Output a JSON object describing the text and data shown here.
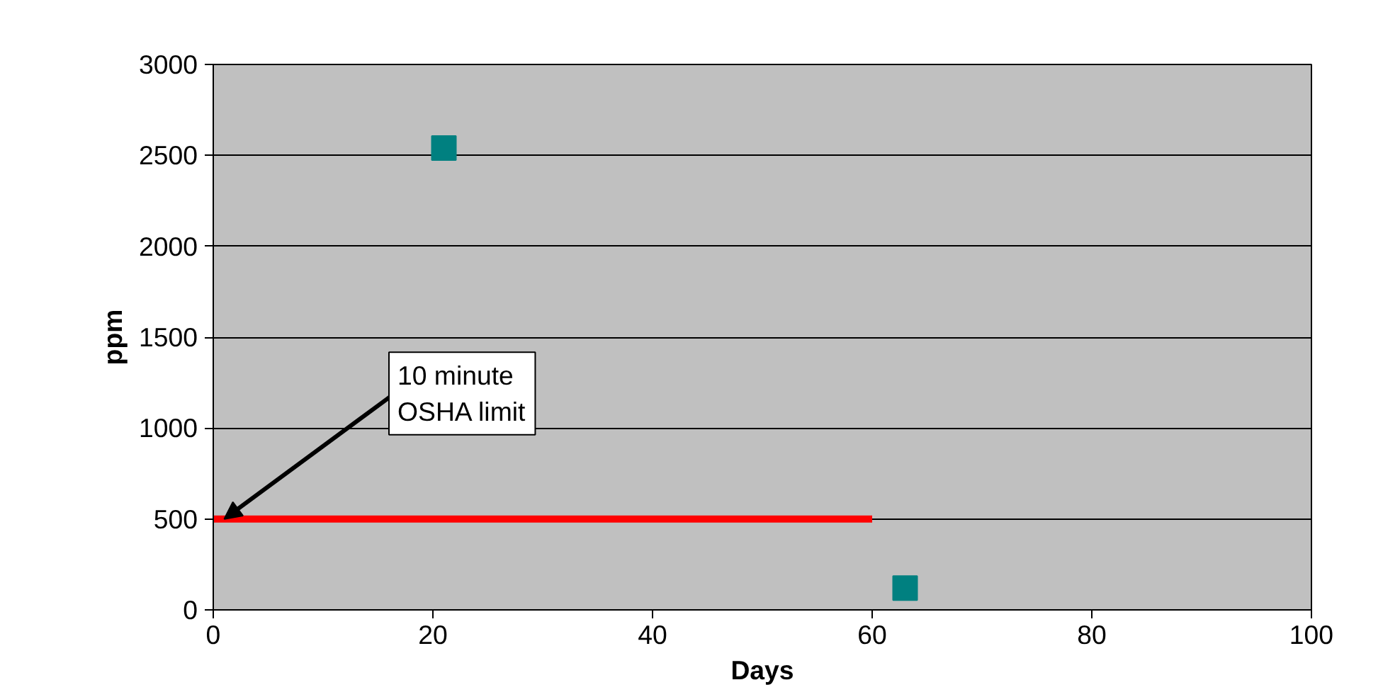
{
  "chart_data": {
    "type": "scatter",
    "xlabel": "Days",
    "ylabel": "ppm",
    "xlim": [
      0,
      100
    ],
    "ylim": [
      0,
      3000
    ],
    "xticks": [
      0,
      20,
      40,
      60,
      80,
      100
    ],
    "yticks": [
      0,
      500,
      1000,
      1500,
      2000,
      2500,
      3000
    ],
    "grid": "y",
    "marker": "square",
    "series": [
      {
        "color": "#008080",
        "x": [
          21,
          63
        ],
        "values": [
          2540,
          120
        ]
      },
      {
        "type": "line",
        "color": "#ff0000",
        "x": [
          0,
          60
        ],
        "values": [
          500,
          500
        ],
        "marker": "none"
      }
    ],
    "annotations": [
      {
        "text": "10 minute\nOSHA limit",
        "x": 1,
        "y": 500
      }
    ]
  }
}
